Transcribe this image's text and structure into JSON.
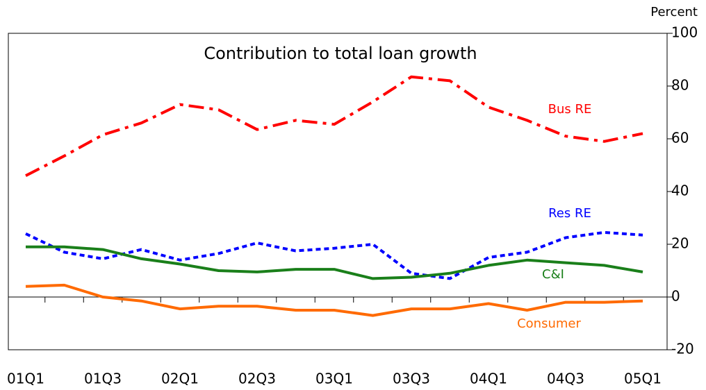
{
  "chart_data": {
    "type": "line",
    "title": "Contribution to total loan growth",
    "y_unit_label": "Percent",
    "categories": [
      "01Q1",
      null,
      "01Q3",
      null,
      "02Q1",
      null,
      "02Q3",
      null,
      "03Q1",
      null,
      "03Q3",
      null,
      "04Q1",
      null,
      "04Q3",
      null,
      "05Q1"
    ],
    "series": [
      {
        "name": "Bus RE",
        "color": "#ff0000",
        "style": "dashdot",
        "values": [
          46,
          53.5,
          61.5,
          66,
          73,
          71,
          63.5,
          67,
          65.5,
          74,
          83.5,
          82,
          72,
          67,
          61,
          59,
          62
        ]
      },
      {
        "name": "Res RE",
        "color": "#0000ff",
        "style": "dotted",
        "values": [
          24,
          17,
          14.5,
          18,
          14,
          16.5,
          20.5,
          17.5,
          18.5,
          20,
          9,
          7,
          15,
          17,
          22.5,
          24.5,
          23.5
        ]
      },
      {
        "name": "C&I",
        "color": "#1a7f1a",
        "style": "solid",
        "values": [
          19,
          19,
          18,
          14.5,
          12.5,
          10,
          9.5,
          10.5,
          10.5,
          7,
          7.5,
          9,
          12,
          14,
          13,
          12,
          9.5
        ]
      },
      {
        "name": "Consumer",
        "color": "#ff6a00",
        "style": "solid",
        "values": [
          4,
          4.5,
          0,
          -1.5,
          -4.5,
          -3.5,
          -3.5,
          -5,
          -5,
          -7,
          -4.5,
          -4.5,
          -2.5,
          -5,
          -2,
          -2,
          -1.5
        ]
      }
    ],
    "ylim": [
      -20,
      100
    ],
    "yticks": [
      -20,
      0,
      20,
      40,
      60,
      80,
      100
    ],
    "grid": false
  }
}
